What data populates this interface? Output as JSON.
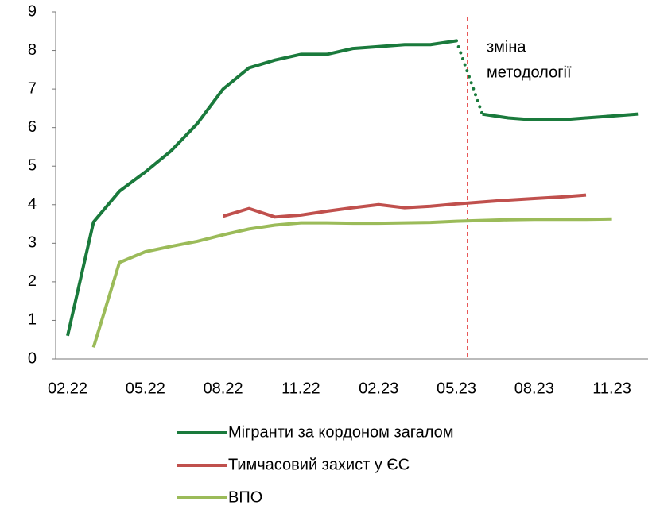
{
  "chart_data": {
    "type": "line",
    "categories": [
      "02.22",
      null,
      null,
      "05.22",
      null,
      null,
      "08.22",
      null,
      null,
      "11.22",
      null,
      null,
      "02.23",
      null,
      null,
      "05.23",
      null,
      null,
      "08.23",
      null,
      null,
      "11.23",
      null
    ],
    "series": [
      {
        "name": "Мігранти за кордоном загалом",
        "color": "#1a7a3c",
        "dotted_segment": [
          15,
          16
        ],
        "values": [
          0.6,
          3.55,
          4.35,
          4.85,
          5.4,
          6.1,
          7.0,
          7.55,
          7.75,
          7.9,
          7.9,
          8.05,
          8.1,
          8.15,
          8.15,
          8.25,
          6.35,
          6.25,
          6.2,
          6.2,
          6.25,
          6.3,
          6.35
        ]
      },
      {
        "name": "Тимчасовий захист у ЄС",
        "color": "#c0504d",
        "values": [
          null,
          null,
          null,
          null,
          null,
          null,
          3.7,
          3.9,
          3.68,
          3.73,
          3.83,
          3.92,
          4.0,
          3.92,
          3.96,
          4.02,
          4.07,
          4.12,
          4.16,
          4.2,
          4.25,
          null,
          null
        ]
      },
      {
        "name": "ВПО",
        "color": "#9bbb59",
        "values": [
          null,
          0.3,
          2.5,
          2.78,
          2.92,
          3.05,
          3.22,
          3.37,
          3.47,
          3.53,
          3.53,
          3.52,
          3.52,
          3.53,
          3.54,
          3.57,
          3.59,
          3.61,
          3.62,
          3.62,
          3.62,
          3.63,
          null
        ]
      }
    ],
    "annotation": [
      "зміна",
      "методології"
    ],
    "ylim": [
      0,
      9
    ],
    "yticks": [
      0,
      1,
      2,
      3,
      4,
      5,
      6,
      7,
      8,
      9
    ]
  }
}
